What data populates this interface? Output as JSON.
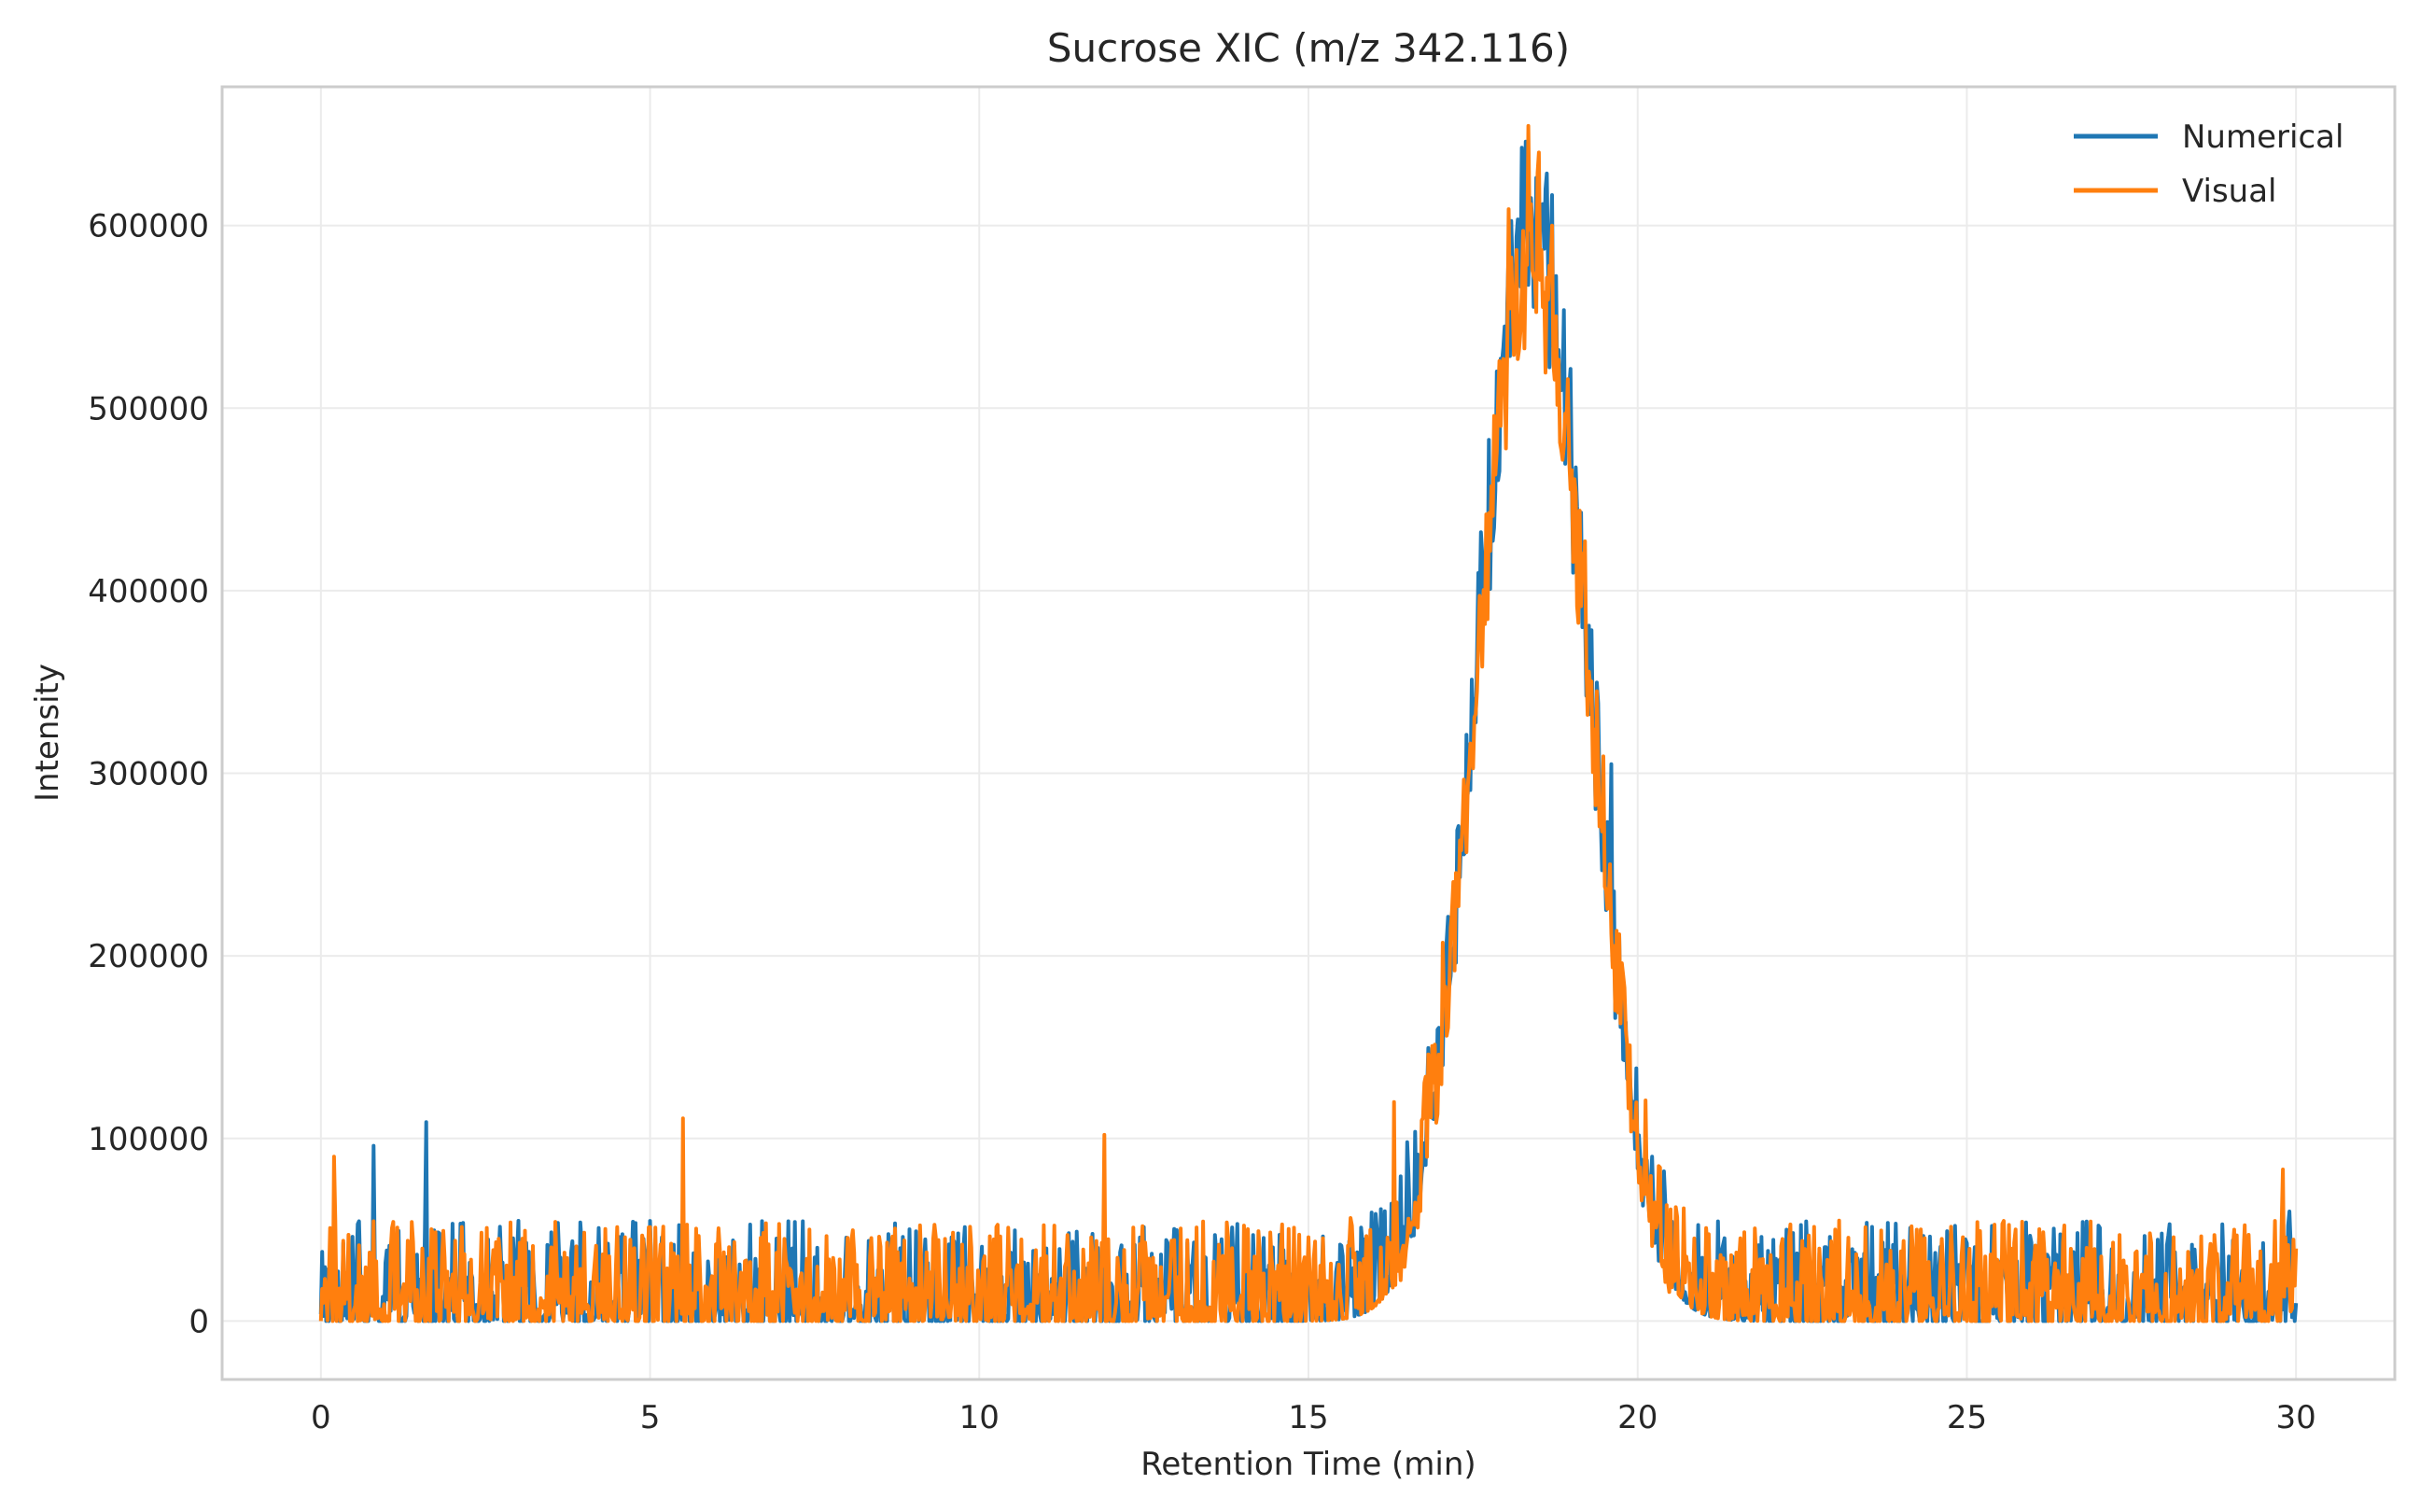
{
  "chart_data": {
    "type": "line",
    "title": "Sucrose XIC (m/z 342.116)",
    "xlabel": "Retention Time (min)",
    "ylabel": "Intensity",
    "xlim": [
      -1.5,
      31.5
    ],
    "ylim": [
      -32000,
      676000
    ],
    "x_ticks": [
      0,
      5,
      10,
      15,
      20,
      25,
      30
    ],
    "y_ticks": [
      0,
      100000,
      200000,
      300000,
      400000,
      500000,
      600000
    ],
    "grid": true,
    "legend_position": "top-right",
    "series": [
      {
        "name": "Numerical",
        "color": "#1f77b4",
        "peak_center": 18.4,
        "peak_height": 585000,
        "peak_sigma": 0.82,
        "baseline_noise_max": 55000,
        "x_range": [
          0,
          30
        ],
        "notable_points": [
          [
            0.8,
            96000
          ],
          [
            1.6,
            109000
          ],
          [
            16.5,
            98000
          ],
          [
            18.3,
            646000
          ],
          [
            18.6,
            620000
          ],
          [
            19.6,
            305000
          ],
          [
            20.4,
            82000
          ],
          [
            29.9,
            60000
          ]
        ]
      },
      {
        "name": "Visual",
        "color": "#ff7f0e",
        "peak_center": 18.4,
        "peak_height": 575000,
        "peak_sigma": 0.82,
        "baseline_noise_max": 55000,
        "x_range": [
          0,
          30
        ],
        "notable_points": [
          [
            0.2,
            90000
          ],
          [
            5.5,
            111000
          ],
          [
            11.9,
            102000
          ],
          [
            16.3,
            120000
          ],
          [
            18.5,
            640000
          ],
          [
            18.7,
            600000
          ],
          [
            29.8,
            83000
          ]
        ]
      }
    ]
  }
}
